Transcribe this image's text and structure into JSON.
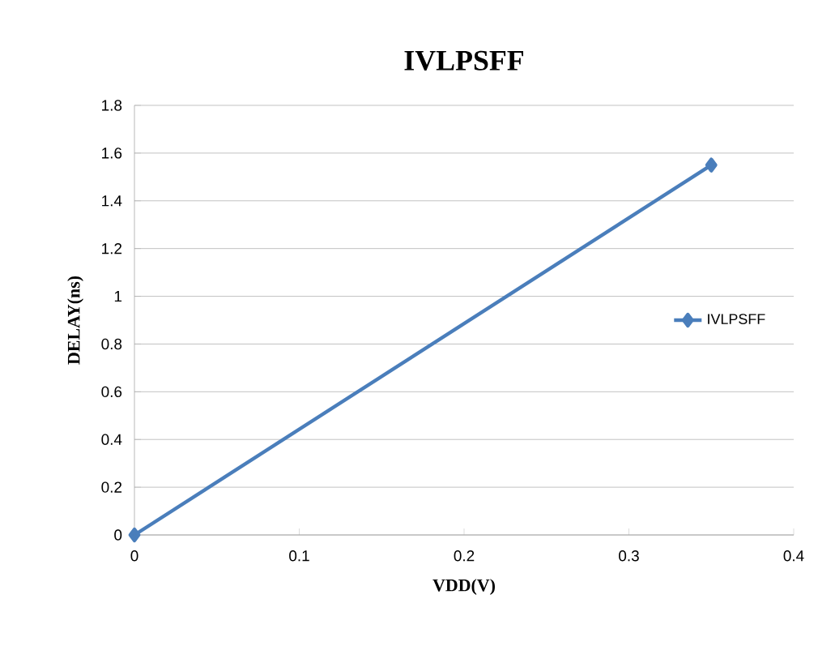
{
  "chart_data": {
    "type": "line",
    "title": "IVLPSFF",
    "xlabel": "VDD(V)",
    "ylabel": "DELAY(ns)",
    "x": [
      0,
      0.35
    ],
    "series": [
      {
        "name": "IVLPSFF",
        "color": "#4a7ebb",
        "values": [
          0,
          1.55
        ]
      }
    ],
    "xlim": [
      0,
      0.4
    ],
    "xticks": [
      0,
      0.1,
      0.2,
      0.3,
      0.4
    ],
    "ylim": [
      0,
      1.8
    ],
    "yticks": [
      0,
      0.2,
      0.4,
      0.6,
      0.8,
      1,
      1.2,
      1.4,
      1.6,
      1.8
    ],
    "grid": "y",
    "legend": "right",
    "marker": "diamond",
    "line_style": "solid"
  }
}
